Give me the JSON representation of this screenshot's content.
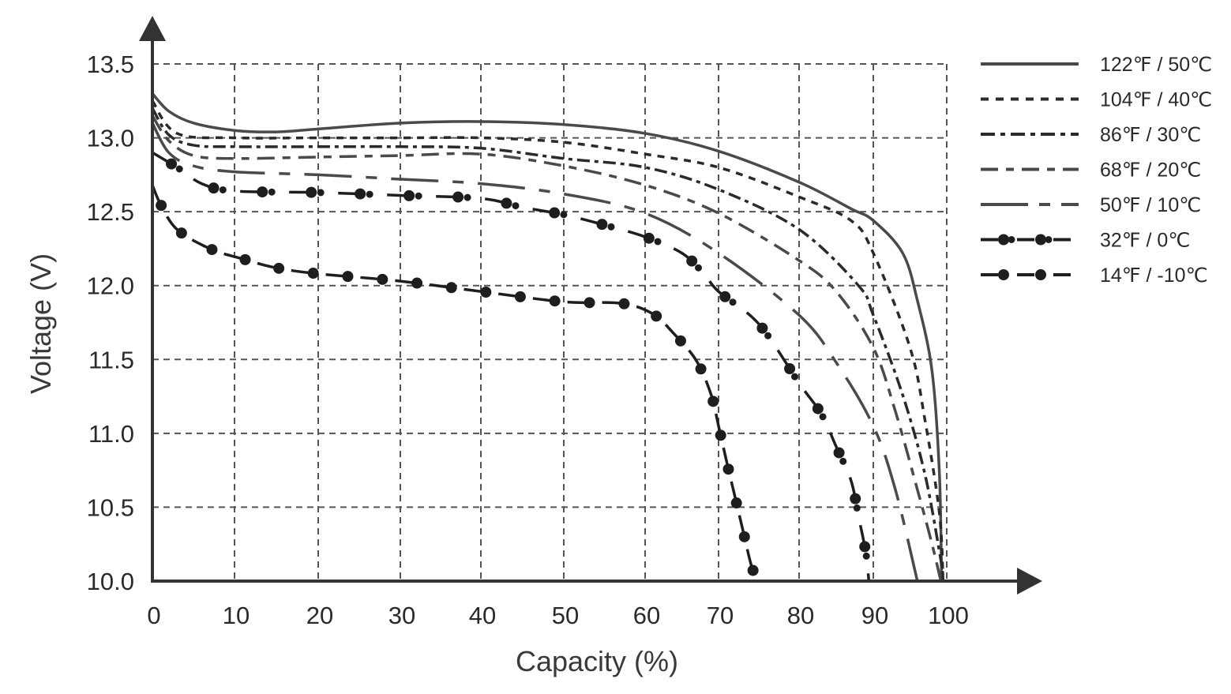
{
  "chart_data": {
    "type": "line",
    "xlabel": "Capacity (%)",
    "ylabel": "Voltage (V)",
    "xlim": [
      0,
      100
    ],
    "ylim": [
      10.0,
      13.5
    ],
    "x_ticks": [
      "0",
      "10",
      "20",
      "30",
      "40",
      "50",
      "60",
      "70",
      "80",
      "90",
      "100"
    ],
    "y_ticks": [
      "10.0",
      "10.5",
      "11.0",
      "11.5",
      "12.0",
      "12.5",
      "13.0",
      "13.5"
    ],
    "grid": true,
    "legend_position": "right",
    "series": [
      {
        "name": "122℉ / 50℃",
        "style": "solid",
        "color": "#4a4a4a",
        "x": [
          0,
          2,
          5,
          10,
          15,
          20,
          30,
          40,
          50,
          60,
          70,
          80,
          87,
          90,
          94,
          96,
          98,
          99,
          99.3
        ],
        "y": [
          13.3,
          13.18,
          13.1,
          13.05,
          13.04,
          13.06,
          13.1,
          13.11,
          13.09,
          13.03,
          12.91,
          12.7,
          12.52,
          12.44,
          12.22,
          11.9,
          11.42,
          10.73,
          10.0
        ]
      },
      {
        "name": "104℉ / 40℃",
        "style": "dotted",
        "color": "#2a2a2a",
        "x": [
          0,
          3,
          10,
          20,
          30,
          40,
          50,
          60,
          70,
          80,
          87,
          90,
          95,
          97,
          99,
          99.5
        ],
        "y": [
          13.25,
          13.03,
          13.0,
          13.0,
          13.0,
          13.0,
          12.97,
          12.89,
          12.8,
          12.6,
          12.44,
          12.22,
          11.58,
          11.1,
          10.46,
          10.0
        ]
      },
      {
        "name": "86℉ / 30℃",
        "style": "dash-dot",
        "color": "#2a2a2a",
        "x": [
          0,
          2,
          5,
          10,
          20,
          30,
          40,
          50,
          60,
          70,
          80,
          88,
          90,
          94,
          97,
          99,
          99.6
        ],
        "y": [
          13.2,
          13.02,
          12.95,
          12.94,
          12.94,
          12.94,
          12.93,
          12.86,
          12.8,
          12.65,
          12.38,
          12.0,
          11.8,
          11.26,
          10.73,
          10.2,
          10.0
        ]
      },
      {
        "name": "68℉ / 20℃",
        "style": "long-dash-short-dash",
        "color": "#4a4a4a",
        "x": [
          0,
          2,
          5,
          10,
          20,
          30,
          40,
          50,
          60,
          70,
          80,
          85,
          90,
          93,
          96,
          98,
          99.2
        ],
        "y": [
          13.15,
          12.98,
          12.88,
          12.86,
          12.87,
          12.88,
          12.89,
          12.81,
          12.68,
          12.49,
          12.17,
          11.96,
          11.58,
          11.15,
          10.62,
          10.25,
          10.0
        ]
      },
      {
        "name": "50℉ / 10℃",
        "style": "long-dash-dash",
        "color": "#4a4a4a",
        "x": [
          0,
          2,
          5,
          10,
          20,
          30,
          40,
          50,
          60,
          70,
          80,
          85,
          90,
          93,
          96
        ],
        "y": [
          13.1,
          12.9,
          12.81,
          12.77,
          12.75,
          12.72,
          12.69,
          12.62,
          12.49,
          12.22,
          11.8,
          11.48,
          11.05,
          10.62,
          10.0
        ]
      },
      {
        "name": "32℉ / 0℃",
        "style": "dash-double-dot",
        "color": "#1e1e1e",
        "x": [
          0,
          3,
          6,
          10,
          20,
          30,
          40,
          45,
          50,
          55,
          60,
          65,
          68,
          70,
          75,
          80,
          83,
          85,
          87,
          88,
          89,
          89.4
        ],
        "y": [
          12.9,
          12.8,
          12.69,
          12.64,
          12.63,
          12.61,
          12.59,
          12.53,
          12.48,
          12.41,
          12.33,
          12.22,
          12.08,
          11.96,
          11.74,
          11.34,
          11.13,
          10.91,
          10.68,
          10.44,
          10.19,
          10.0
        ]
      },
      {
        "name": "14℉ / -10℃",
        "style": "dash-dot-marker",
        "color": "#1e1e1e",
        "x": [
          0,
          1,
          3,
          7,
          11,
          15,
          20,
          30,
          40,
          50,
          57,
          61,
          64,
          67,
          69,
          70,
          71,
          72,
          73,
          74,
          74.8
        ],
        "y": [
          12.68,
          12.55,
          12.38,
          12.25,
          12.18,
          12.12,
          12.08,
          12.03,
          11.96,
          11.89,
          11.88,
          11.81,
          11.67,
          11.49,
          11.26,
          11.05,
          10.81,
          10.58,
          10.35,
          10.12,
          10.0
        ]
      }
    ]
  }
}
